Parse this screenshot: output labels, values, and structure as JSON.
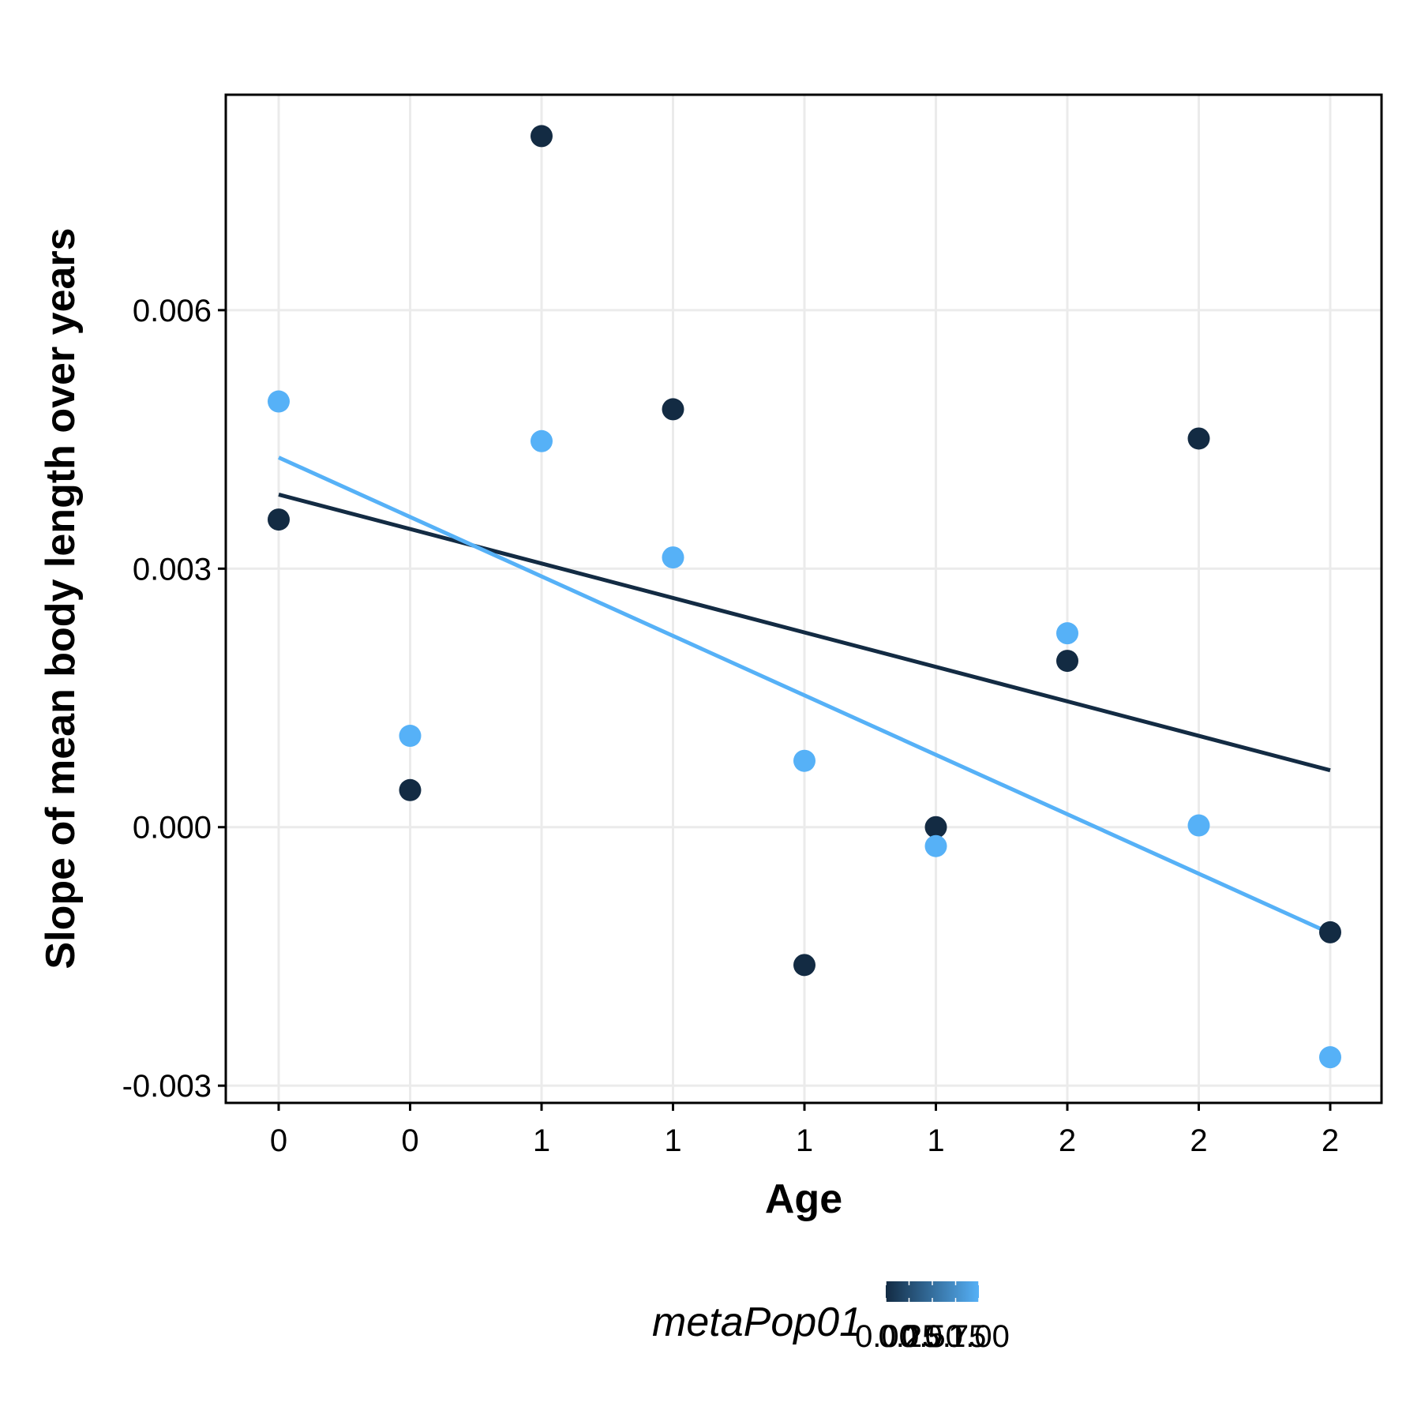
{
  "chart_data": {
    "type": "scatter",
    "xlabel": "Age",
    "ylabel": "Slope of mean body length over years",
    "x_tick_labels": [
      "0",
      "0",
      "1",
      "1",
      "1",
      "1",
      "2",
      "2",
      "2"
    ],
    "y_ticks": [
      -0.003,
      0.0,
      0.003,
      0.006
    ],
    "y_tick_labels": [
      "-0.003",
      "0.000",
      "0.003",
      "0.006"
    ],
    "ylim": [
      -0.0032,
      0.0085
    ],
    "grid": true,
    "legend": {
      "title": "metaPop01",
      "placement": "bottom",
      "colorbar_labels": [
        "0.00",
        "0.25",
        "0.50",
        "0.75",
        "1.00"
      ],
      "low_color": "#132B43",
      "high_color": "#56B1F7"
    },
    "colors": {
      "dark": "#132B43",
      "light": "#56B1F7",
      "grid": "#EBEBEB"
    },
    "series": [
      {
        "color_value": 0,
        "color": "#132B43",
        "points": [
          {
            "x_index": 0,
            "y": 0.00357
          },
          {
            "x_index": 1,
            "y": 0.00043
          },
          {
            "x_index": 2,
            "y": 0.00802
          },
          {
            "x_index": 3,
            "y": 0.00485
          },
          {
            "x_index": 4,
            "y": -0.0016
          },
          {
            "x_index": 5,
            "y": 0.0
          },
          {
            "x_index": 6,
            "y": 0.00193
          },
          {
            "x_index": 7,
            "y": 0.00451
          },
          {
            "x_index": 8,
            "y": -0.00122
          }
        ],
        "trend": {
          "y_start": 0.00386,
          "y_end": 0.00066
        }
      },
      {
        "color_value": 1,
        "color": "#56B1F7",
        "points": [
          {
            "x_index": 0,
            "y": 0.00494
          },
          {
            "x_index": 1,
            "y": 0.00106
          },
          {
            "x_index": 2,
            "y": 0.00448
          },
          {
            "x_index": 3,
            "y": 0.00313
          },
          {
            "x_index": 4,
            "y": 0.00077
          },
          {
            "x_index": 5,
            "y": -0.00022
          },
          {
            "x_index": 6,
            "y": 0.00225
          },
          {
            "x_index": 7,
            "y": 2e-05
          },
          {
            "x_index": 8,
            "y": -0.00267
          }
        ],
        "trend": {
          "y_start": 0.00429,
          "y_end": -0.00123
        }
      }
    ]
  }
}
